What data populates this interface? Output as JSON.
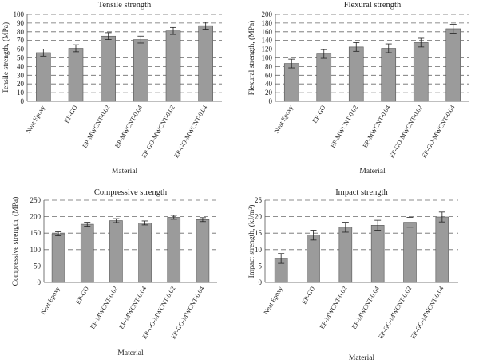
{
  "colors": {
    "bar": "#9b9b9b",
    "grid": "#6a6a6a",
    "text": "#222222"
  },
  "chart_data": [
    {
      "type": "bar",
      "title": "Tensile strength",
      "xlabel": "Material",
      "ylabel": "Tensile strength, (MPa)",
      "ylim": [
        0,
        100
      ],
      "yticks": [
        0,
        10,
        20,
        30,
        40,
        50,
        60,
        70,
        80,
        90,
        100
      ],
      "grid": true,
      "categories": [
        "Neat Epoxy",
        "EP-GO",
        "EP-MWCNT-0.02",
        "EP-MWCNT-0.04",
        "EP-GO-MWCNT-0.02",
        "EP-GO-MWCNT-0.04"
      ],
      "values": [
        56,
        61,
        75,
        71,
        81,
        87
      ],
      "errors": [
        4,
        4,
        4,
        4,
        4,
        4
      ]
    },
    {
      "type": "bar",
      "title": "Flexural strength",
      "xlabel": "Material",
      "ylabel": "Flexural strength, (MPa)",
      "ylim": [
        0,
        200
      ],
      "yticks": [
        0,
        20,
        40,
        60,
        80,
        100,
        120,
        140,
        160,
        180,
        200
      ],
      "grid": true,
      "categories": [
        "Neat Epoxy",
        "EP-GO",
        "EP-MWCNT-0.02",
        "EP-MWCNT-0.04",
        "EP-GO-MWCNT-0.02",
        "EP-GO-MWCNT-0.04"
      ],
      "values": [
        87,
        109,
        125,
        122,
        135,
        167
      ],
      "errors": [
        10,
        10,
        10,
        10,
        10,
        10
      ]
    },
    {
      "type": "bar",
      "title": "Compressive strength",
      "xlabel": "Material",
      "ylabel": "Compressive strength, (MPa)",
      "ylim": [
        0,
        250
      ],
      "yticks": [
        0,
        50,
        100,
        150,
        200,
        250
      ],
      "grid": true,
      "categories": [
        "Neat Epoxy",
        "EP-GO",
        "EP-MWCNT-0.02",
        "EP-MWCNT-0.04",
        "EP-GO-MWCNT-0.02",
        "EP-GO-MWCNT-0.04"
      ],
      "values": [
        148,
        177,
        188,
        181,
        198,
        191
      ],
      "errors": [
        6,
        6,
        6,
        6,
        6,
        6
      ]
    },
    {
      "type": "bar",
      "title": "Impact strength",
      "xlabel": "Material",
      "ylabel": "Impact strength, (kJ/m²)",
      "ylim": [
        0,
        25
      ],
      "yticks": [
        0,
        5,
        10,
        15,
        20,
        25
      ],
      "grid": true,
      "categories": [
        "Neat Epoxy",
        "EP-GO",
        "EP-MWCNT-0.02",
        "EP-MWCNT-0.04",
        "EP-GO-MWCNT-0.02",
        "EP-GO-MWCNT-0.04"
      ],
      "values": [
        7.3,
        14.4,
        16.8,
        17.4,
        18.3,
        19.9
      ],
      "errors": [
        1.5,
        1.5,
        1.5,
        1.5,
        1.5,
        1.5
      ]
    }
  ]
}
